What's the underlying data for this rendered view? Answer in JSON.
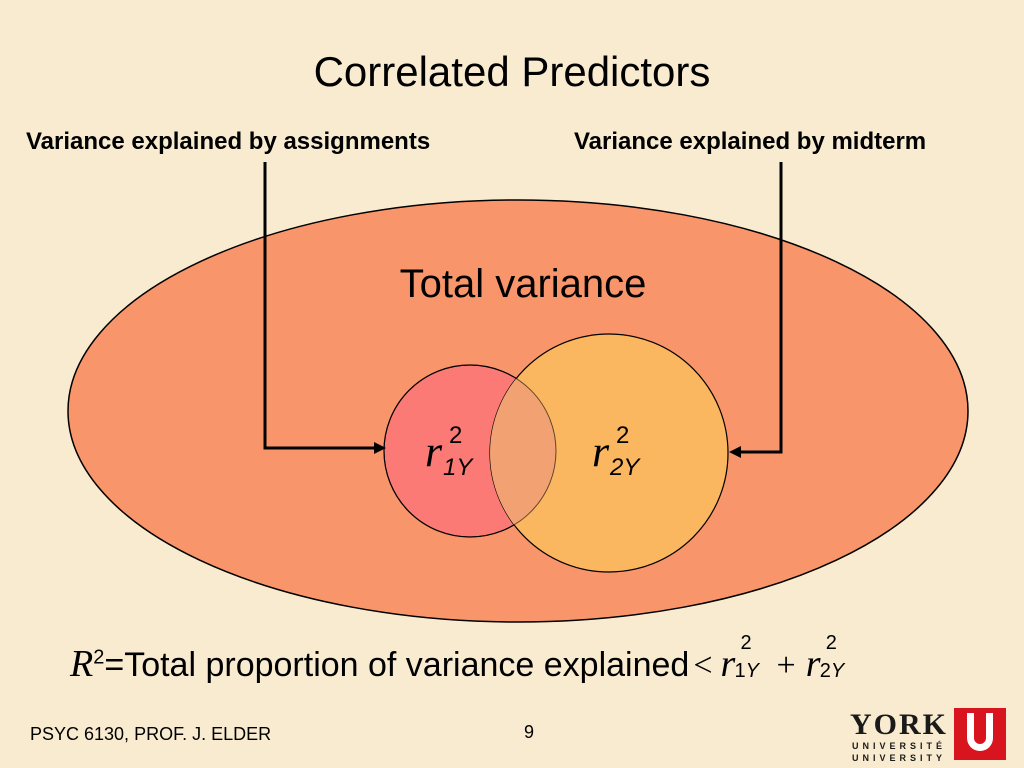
{
  "title": "Correlated Predictors",
  "labels": {
    "left": "Variance explained by assignments",
    "right": "Variance explained by midterm",
    "total": "Total variance"
  },
  "circles": {
    "left": {
      "symbol": "r",
      "sup": "2",
      "sub_num": "1",
      "sub_var": "Y"
    },
    "right": {
      "symbol": "r",
      "sup": "2",
      "sub_num": "2",
      "sub_var": "Y"
    }
  },
  "formula": {
    "R": "R",
    "R_sup": "2",
    "text": "=Total proportion of variance explained",
    "lt": "<",
    "plus": "+",
    "term1": {
      "symbol": "r",
      "sup": "2",
      "sub_num": "1",
      "sub_var": "Y"
    },
    "term2": {
      "symbol": "r",
      "sup": "2",
      "sub_num": "2",
      "sub_var": "Y"
    }
  },
  "footer": "PSYC 6130, PROF. J. ELDER",
  "page_number": "9",
  "logo": {
    "name": "YORK",
    "line1": "UNIVERSITÉ",
    "line2": "UNIVERSITY"
  },
  "colors": {
    "background": "#f8ebd0",
    "ellipse": "#f9956a",
    "circle_left": "#fb7a76",
    "circle_right": "#fbb660",
    "overlap": "#f2a272",
    "logo_red": "#d8141e"
  },
  "icons": [
    "arrow-left-icon",
    "arrow-right-icon",
    "york-logo"
  ]
}
